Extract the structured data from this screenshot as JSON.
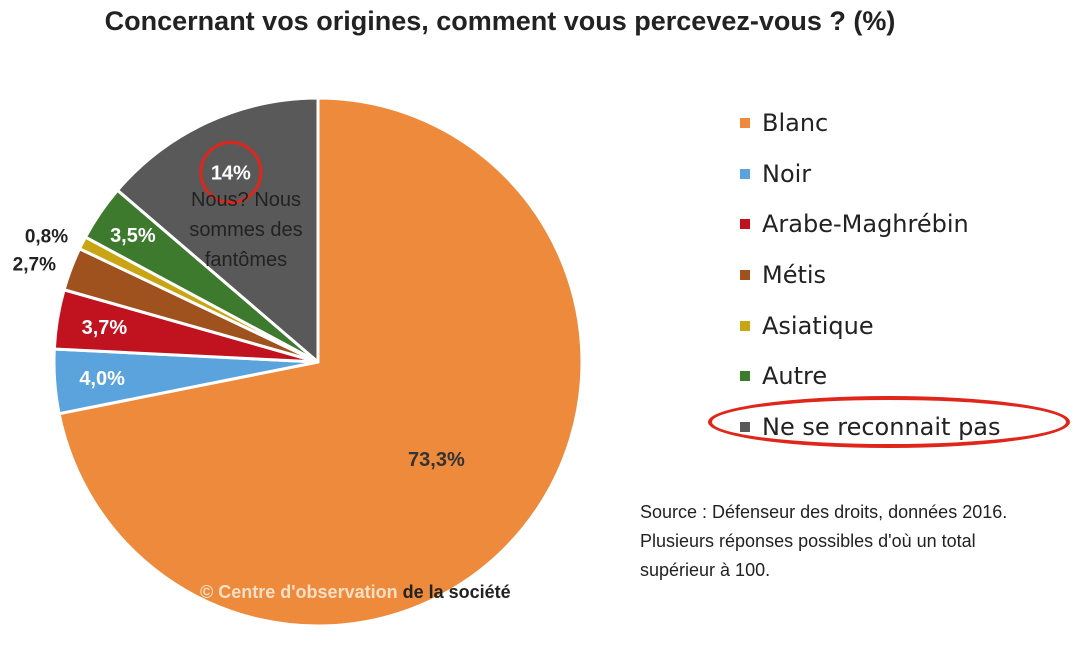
{
  "chart_data": {
    "type": "pie",
    "title": "Concernant vos origines, comment vous percevez-vous ? (%)",
    "slices": [
      {
        "name": "Blanc",
        "value": 73.3,
        "label": "73,3%",
        "color": "#ed8a3c"
      },
      {
        "name": "Noir",
        "value": 4.0,
        "label": "4,0%",
        "color": "#5ba3dc"
      },
      {
        "name": "Arabe-Maghrébin",
        "value": 3.7,
        "label": "3,7%",
        "color": "#c1121f"
      },
      {
        "name": "Métis",
        "value": 2.7,
        "label": "2,7%",
        "color": "#a0521e"
      },
      {
        "name": "Asiatique",
        "value": 0.8,
        "label": "0,8%",
        "color": "#c9a514"
      },
      {
        "name": "Autre",
        "value": 3.5,
        "label": "3,5%",
        "color": "#3e7a2e"
      },
      {
        "name": "Ne se reconnait pas",
        "value": 14,
        "label": "14%",
        "color": "#595959"
      }
    ],
    "legend_position": "right",
    "annotation": {
      "lines": [
        "Nous? Nous",
        "sommes des",
        "fantômes"
      ]
    }
  },
  "source": {
    "lines": [
      "Source : Défenseur des droits, données 2016.",
      "Plusieurs réponses possibles d'où un total",
      "supérieur à 100."
    ]
  },
  "copyright": {
    "part1": "© Centre  d'observation",
    "part2": " de la société"
  },
  "colors": {
    "highlight": "#e0261b"
  }
}
